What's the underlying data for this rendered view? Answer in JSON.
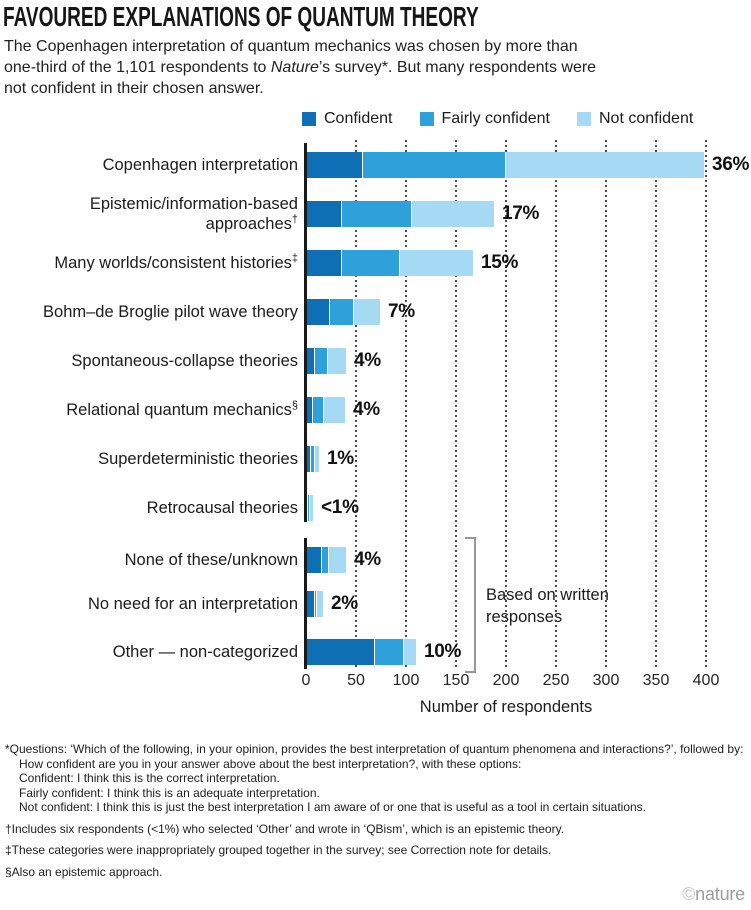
{
  "header": {
    "title": "FAVOURED EXPLANATIONS OF QUANTUM THEORY",
    "subtitle_lines": [
      [
        {
          "text": "The Copenhagen interpretation of quantum mechanics was chosen by more than"
        }
      ],
      [
        {
          "text": "one-third of the 1,101 respondents to "
        },
        {
          "text": "Nature",
          "italic": true
        },
        {
          "text": "’s survey*. But many respondents were"
        }
      ],
      [
        {
          "text": "not confident in their chosen answer."
        }
      ]
    ]
  },
  "colors": {
    "confident": "#0f6fb5",
    "fairly_confident": "#2fa1da",
    "not_confident": "#a6d9f4",
    "axis": "#1a1a1a",
    "grid": "#4d4d4d",
    "bracket": "#979797"
  },
  "legend": [
    {
      "label": "Confident",
      "color_key": "confident"
    },
    {
      "label": "Fairly confident",
      "color_key": "fairly_confident"
    },
    {
      "label": "Not confident",
      "color_key": "not_confident"
    }
  ],
  "chart_data": {
    "type": "bar",
    "orientation": "horizontal_stacked",
    "title": "FAVOURED EXPLANATIONS OF QUANTUM THEORY",
    "xlabel": "Number of respondents",
    "xlim": [
      0,
      425
    ],
    "xticks": [
      0,
      50,
      100,
      150,
      200,
      250,
      300,
      350,
      400
    ],
    "grid": "dotted vertical gridlines every 50",
    "legend_position": "top",
    "series_names": [
      "Confident",
      "Fairly confident",
      "Not confident"
    ],
    "groups": [
      {
        "rows": [
          {
            "label_lines": [
              "Copenhagen interpretation"
            ],
            "marker": "",
            "values": [
              56,
              143,
              199
            ],
            "pct": "36%"
          },
          {
            "label_lines": [
              "Epistemic/information-based",
              "approaches"
            ],
            "marker": "†",
            "values": [
              35,
              70,
              83
            ],
            "pct": "17%"
          },
          {
            "label_lines": [
              "Many worlds/consistent histories"
            ],
            "marker": "‡",
            "values": [
              35,
              58,
              74
            ],
            "pct": "15%"
          },
          {
            "label_lines": [
              "Bohm–de Broglie pilot wave theory"
            ],
            "marker": "",
            "values": [
              23,
              24,
              27
            ],
            "pct": "7%"
          },
          {
            "label_lines": [
              "Spontaneous-collapse theories"
            ],
            "marker": "",
            "values": [
              8,
              13,
              19
            ],
            "pct": "4%"
          },
          {
            "label_lines": [
              "Relational quantum mechanics"
            ],
            "marker": "§",
            "values": [
              6,
              11,
              22
            ],
            "pct": "4%"
          },
          {
            "label_lines": [
              "Superdeterministic theories"
            ],
            "marker": "",
            "values": [
              4,
              4,
              5
            ],
            "pct": "1%"
          },
          {
            "label_lines": [
              "Retrocausal theories"
            ],
            "marker": "",
            "values": [
              1,
              2,
              4
            ],
            "pct": "<1%"
          }
        ]
      },
      {
        "annotation": "Based on written responses",
        "rows": [
          {
            "label_lines": [
              "None of these/unknown"
            ],
            "marker": "",
            "values": [
              15,
              7,
              18
            ],
            "pct": "4%"
          },
          {
            "label_lines": [
              "No need for an interpretation"
            ],
            "marker": "",
            "values": [
              8,
              2,
              7
            ],
            "pct": "2%"
          },
          {
            "label_lines": [
              "Other — non-categorized"
            ],
            "marker": "",
            "values": [
              68,
              29,
              13
            ],
            "pct": "10%"
          }
        ]
      }
    ]
  },
  "footnotes": {
    "main": "*Questions: ‘Which of the following, in your opinion, provides the best interpretation of quantum phenomena and interactions?’, followed by:",
    "sub": [
      "How confident are you in your answer above about the best interpretation?, with these options:",
      "Confident: I think this is the correct interpretation.",
      "Fairly confident: I think this is an adequate interpretation.",
      "Not confident: I think this is just the best interpretation I am aware of or one that is useful as a tool in certain situations."
    ],
    "extra": [
      "†Includes six respondents (<1%) who selected ‘Other’ and wrote in ‘QBism’, which is an epistemic theory.",
      "‡These categories were inappropriately grouped together in the survey; see Correction note for details.",
      "§Also an epistemic approach."
    ]
  },
  "credit": {
    "symbol": "©",
    "brand": "nature"
  }
}
